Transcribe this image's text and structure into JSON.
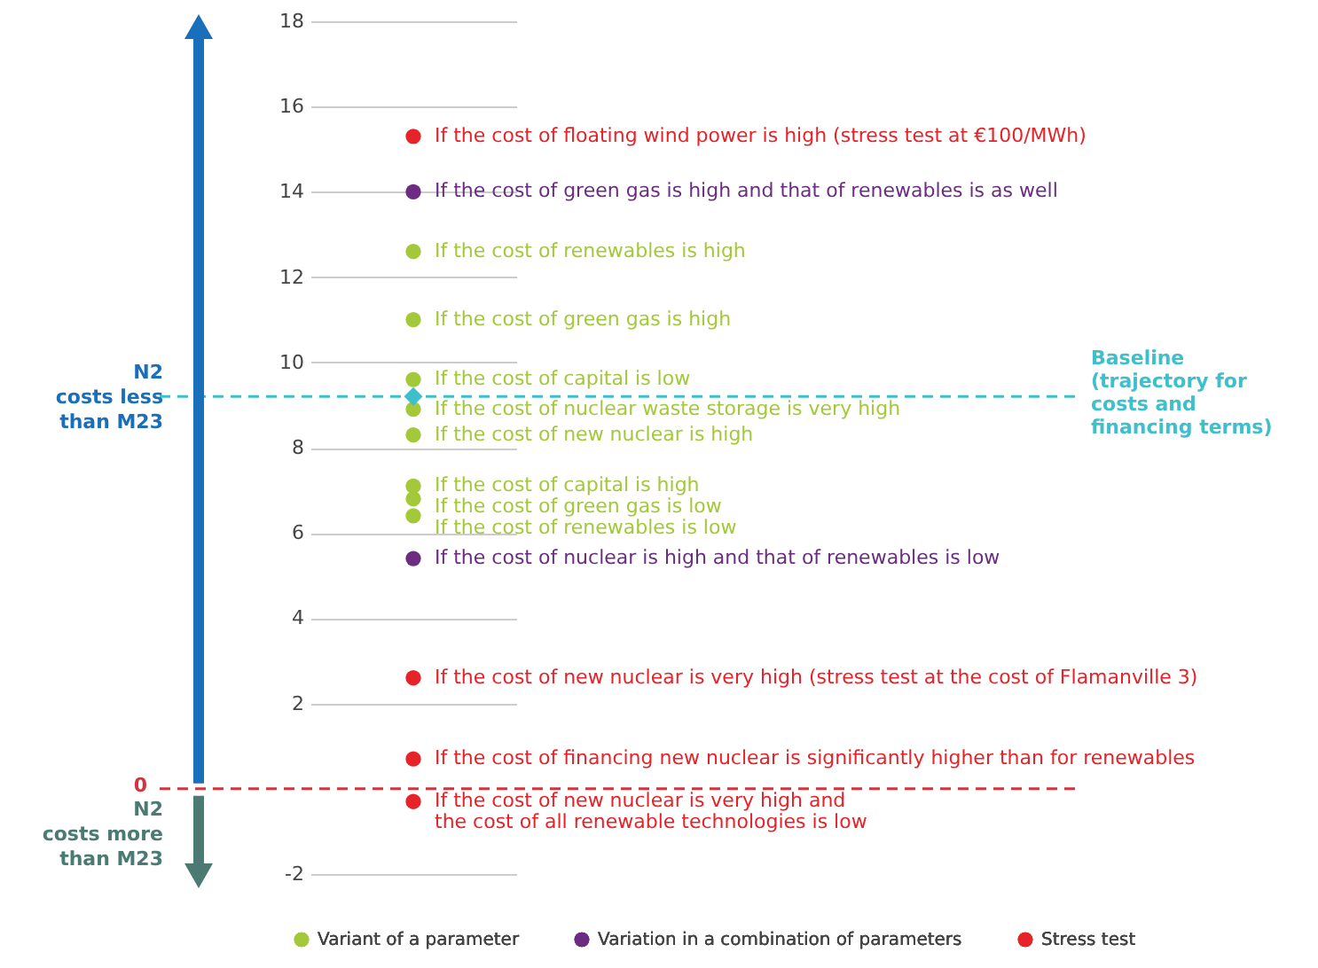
{
  "chart_data": {
    "type": "scatter",
    "categories": [
      null
    ],
    "series": [
      {
        "name": "Variant of a parameter",
        "color": "#a3c93a",
        "x": [
          null,
          null,
          null,
          null,
          null,
          null,
          null,
          null
        ],
        "values": [
          12.6,
          11.0,
          9.6,
          8.9,
          8.3,
          7.1,
          6.8,
          6.4
        ],
        "value_labels": [
          "If the cost of renewables is high",
          "If the cost of green gas is high",
          "If the cost of capital is low",
          "If the cost of nuclear waste storage is very high",
          "If the cost of new nuclear is high",
          "If the cost of capital is high",
          "If the cost of green gas is low",
          "If the cost of renewables is low"
        ]
      },
      {
        "name": "Variation in a combination of parameters",
        "color": "#6b2c82",
        "x": [
          null,
          null
        ],
        "values": [
          14.0,
          5.4
        ],
        "value_labels": [
          "If the cost of green gas is high and that of renewables is as well",
          "If the cost of nuclear is high and that of renewables is low"
        ]
      },
      {
        "name": "Stress test",
        "color": "#e52329",
        "x": [
          null,
          null,
          null,
          null
        ],
        "values": [
          15.3,
          2.6,
          0.7,
          -0.3
        ],
        "value_labels": [
          "If the cost of floating wind power is high (stress test at €100/MWh)",
          "If the cost of new nuclear is very high (stress test at the cost of Flamanville 3)",
          "If the cost of financing new nuclear is significantly higher than for renewables",
          "If the cost of new nuclear is very high and\nthe cost of all renewable technologies is low"
        ]
      },
      {
        "color": "#3dbfcc",
        "marker": "diamond",
        "x": [
          null
        ],
        "values": [
          9.2
        ]
      }
    ],
    "ylim": [
      -2,
      18
    ],
    "yticks": [
      -2,
      2,
      4,
      6,
      8,
      10,
      12,
      14,
      16,
      18
    ],
    "ref_lines": [
      {
        "axis": "y",
        "value": 0,
        "label": "0",
        "color": "#d0343f",
        "line_style": "dashed"
      },
      {
        "axis": "y",
        "value": 9.2,
        "label": "Baseline (trajectory for costs and financing terms)",
        "color": "#3dbfcc",
        "line_style": "dashed"
      }
    ],
    "annotations": [
      "N2\ncosts less\nthan M23",
      "N2\ncosts more\nthan M23"
    ],
    "grid": "y",
    "legend": "bottom",
    "marker": "circle",
    "tick_labels": "y"
  }
}
